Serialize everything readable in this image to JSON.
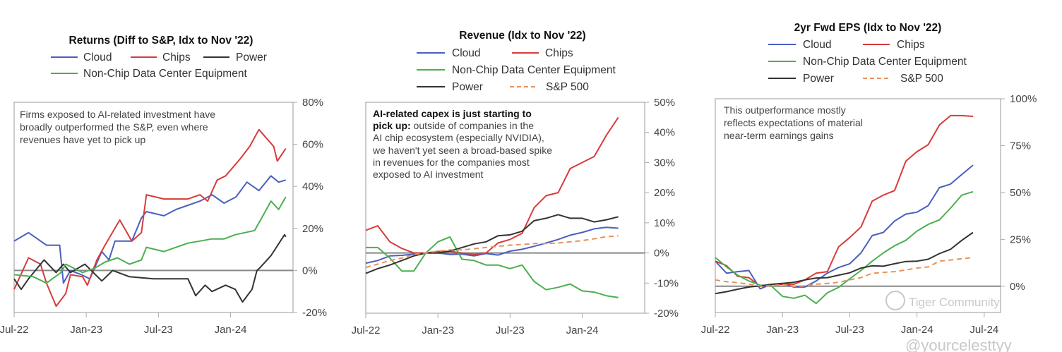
{
  "colors": {
    "cloud": "#4a5fc1",
    "chips": "#d83b3b",
    "power": "#333333",
    "nonchip": "#4caf50",
    "sp500": "#e8915a"
  },
  "watermark": {
    "community": "Tiger Community",
    "handle": "@yourcelesttyy"
  },
  "chart_data": [
    {
      "type": "line",
      "title": "Returns (Diff to S&P, Idx to Nov '22)",
      "annotation": [
        "Firms exposed to AI-related investment have",
        "broadly outperformed the S&P, even where",
        "revenues have yet to pick up"
      ],
      "legend": [
        "Cloud",
        "Chips",
        "Power",
        "Non-Chip Data Center Equipment"
      ],
      "xlim": [
        "2022-07-01",
        "2024-06-07"
      ],
      "ylim": [
        -20,
        80
      ],
      "x_ticks": [
        {
          "date": "2022-07-01",
          "label": "Jul-22"
        },
        {
          "date": "2023-01-01",
          "label": "Jan-23"
        },
        {
          "date": "2023-07-01",
          "label": "Jul-23"
        },
        {
          "date": "2024-01-01",
          "label": "Jan-24"
        }
      ],
      "y_ticks": [
        {
          "value": 80,
          "label": "80%"
        },
        {
          "value": 60,
          "label": "60%"
        },
        {
          "value": 40,
          "label": "40%"
        },
        {
          "value": 20,
          "label": "20%"
        },
        {
          "value": 0,
          "label": "0%"
        },
        {
          "value": -20,
          "label": "-20%"
        }
      ],
      "y_axis_side": "right",
      "grid": false,
      "legend_placement": "top",
      "series": [
        {
          "name": "Cloud",
          "color": "#4a5fc1",
          "dashed": false,
          "points": [
            [
              "2022-07-01",
              14
            ],
            [
              "2022-08-07",
              18
            ],
            [
              "2022-09-22",
              12
            ],
            [
              "2022-10-25",
              12
            ],
            [
              "2022-11-04",
              -6
            ],
            [
              "2022-11-22",
              0
            ],
            [
              "2022-12-19",
              -2
            ],
            [
              "2023-01-10",
              -4
            ],
            [
              "2023-02-10",
              9
            ],
            [
              "2023-02-28",
              5
            ],
            [
              "2023-03-13",
              14
            ],
            [
              "2023-04-25",
              14
            ],
            [
              "2023-05-19",
              25
            ],
            [
              "2023-06-01",
              28
            ],
            [
              "2023-07-15",
              26
            ],
            [
              "2023-08-15",
              29
            ],
            [
              "2023-09-15",
              31
            ],
            [
              "2023-10-15",
              33
            ],
            [
              "2023-11-15",
              36
            ],
            [
              "2023-12-15",
              32
            ],
            [
              "2024-01-15",
              35
            ],
            [
              "2024-02-12",
              42
            ],
            [
              "2024-03-12",
              38
            ],
            [
              "2024-04-12",
              45
            ],
            [
              "2024-05-01",
              42
            ],
            [
              "2024-05-19",
              43
            ]
          ]
        },
        {
          "name": "Chips",
          "color": "#d83b3b",
          "dashed": false,
          "points": [
            [
              "2022-07-01",
              -9
            ],
            [
              "2022-08-07",
              6
            ],
            [
              "2022-09-07",
              3
            ],
            [
              "2022-09-22",
              -6
            ],
            [
              "2022-10-16",
              -17
            ],
            [
              "2022-11-10",
              -11
            ],
            [
              "2022-11-22",
              -2
            ],
            [
              "2022-12-22",
              -3
            ],
            [
              "2023-01-04",
              -7
            ],
            [
              "2023-01-28",
              5
            ],
            [
              "2023-02-18",
              12
            ],
            [
              "2023-03-25",
              24
            ],
            [
              "2023-04-25",
              14
            ],
            [
              "2023-05-19",
              18
            ],
            [
              "2023-06-01",
              36
            ],
            [
              "2023-07-15",
              34
            ],
            [
              "2023-09-15",
              34
            ],
            [
              "2023-10-15",
              36
            ],
            [
              "2023-11-04",
              33
            ],
            [
              "2023-11-28",
              43
            ],
            [
              "2023-12-19",
              45
            ],
            [
              "2024-01-25",
              53
            ],
            [
              "2024-02-19",
              59
            ],
            [
              "2024-03-12",
              67
            ],
            [
              "2024-04-19",
              59
            ],
            [
              "2024-04-28",
              52
            ],
            [
              "2024-05-19",
              58
            ]
          ]
        },
        {
          "name": "Power",
          "color": "#333333",
          "dashed": false,
          "points": [
            [
              "2022-07-01",
              -4
            ],
            [
              "2022-07-19",
              -9
            ],
            [
              "2022-08-07",
              -4
            ],
            [
              "2022-09-16",
              5
            ],
            [
              "2022-10-16",
              -1
            ],
            [
              "2022-11-04",
              3
            ],
            [
              "2022-11-22",
              -1
            ],
            [
              "2022-12-28",
              3
            ],
            [
              "2023-02-10",
              -5
            ],
            [
              "2023-03-07",
              0
            ],
            [
              "2023-04-19",
              -3
            ],
            [
              "2023-06-19",
              -4
            ],
            [
              "2023-09-15",
              -4
            ],
            [
              "2023-10-04",
              -12
            ],
            [
              "2023-10-28",
              -7
            ],
            [
              "2023-11-15",
              -10
            ],
            [
              "2023-12-19",
              -7
            ],
            [
              "2024-01-13",
              -9
            ],
            [
              "2024-02-01",
              -15
            ],
            [
              "2024-02-25",
              -9
            ],
            [
              "2024-03-07",
              0
            ],
            [
              "2024-03-13",
              1
            ],
            [
              "2024-04-12",
              7
            ],
            [
              "2024-05-16",
              17
            ],
            [
              "2024-05-19",
              16
            ]
          ]
        },
        {
          "name": "Non-Chip Data Center Equipment",
          "color": "#4caf50",
          "dashed": false,
          "points": [
            [
              "2022-07-01",
              -2
            ],
            [
              "2022-08-19",
              -3
            ],
            [
              "2022-09-22",
              -6
            ],
            [
              "2022-10-28",
              -1
            ],
            [
              "2022-11-10",
              3
            ],
            [
              "2022-12-22",
              -1
            ],
            [
              "2023-01-22",
              1
            ],
            [
              "2023-02-18",
              4
            ],
            [
              "2023-03-19",
              6
            ],
            [
              "2023-04-19",
              3
            ],
            [
              "2023-05-19",
              5
            ],
            [
              "2023-06-01",
              11
            ],
            [
              "2023-07-15",
              9
            ],
            [
              "2023-09-15",
              13
            ],
            [
              "2023-11-15",
              15
            ],
            [
              "2023-12-15",
              15
            ],
            [
              "2024-01-13",
              17
            ],
            [
              "2024-03-01",
              19
            ],
            [
              "2024-03-25",
              27
            ],
            [
              "2024-04-12",
              33
            ],
            [
              "2024-05-01",
              29
            ],
            [
              "2024-05-19",
              35
            ]
          ]
        }
      ]
    },
    {
      "type": "line",
      "title": "Revenue (Idx to Nov '22)",
      "annotation_bold": "AI-related capex is just starting to",
      "annotation_bold2": "pick up:",
      "annotation_rest2": " outside of companies in the",
      "annotation": [
        "AI chip ecosystem (especially NVIDIA),",
        "we haven't yet seen a broad-based spike",
        "in revenues for the companies most",
        "exposed to AI investment"
      ],
      "legend": [
        "Cloud",
        "Chips",
        "Non-Chip Data Center Equipment",
        "Power",
        "S&P 500"
      ],
      "xlim": [
        "2022-07-01",
        "2024-06-07"
      ],
      "ylim": [
        -20,
        50
      ],
      "x_ticks": [
        {
          "date": "2022-07-01",
          "label": "Jul-22"
        },
        {
          "date": "2023-01-01",
          "label": "Jan-23"
        },
        {
          "date": "2023-07-01",
          "label": "Jul-23"
        },
        {
          "date": "2024-01-01",
          "label": "Jan-24"
        }
      ],
      "y_ticks": [
        {
          "value": 50,
          "label": "50%"
        },
        {
          "value": 40,
          "label": "40%"
        },
        {
          "value": 30,
          "label": "30%"
        },
        {
          "value": 20,
          "label": "20%"
        },
        {
          "value": 10,
          "label": "10%"
        },
        {
          "value": 0,
          "label": "0%"
        },
        {
          "value": -10,
          "label": "-10%"
        },
        {
          "value": -20,
          "label": "-20%"
        }
      ],
      "y_axis_side": "right",
      "grid": false,
      "legend_placement": "top",
      "dates": [
        "2022-07-01",
        "2022-08-01",
        "2022-09-01",
        "2022-10-01",
        "2022-11-01",
        "2022-12-01",
        "2023-01-01",
        "2023-02-01",
        "2023-03-01",
        "2023-04-01",
        "2023-05-01",
        "2023-06-01",
        "2023-07-01",
        "2023-08-01",
        "2023-09-01",
        "2023-10-01",
        "2023-11-01",
        "2023-12-01",
        "2024-01-01",
        "2024-02-01",
        "2024-03-01",
        "2024-04-01"
      ],
      "series": [
        {
          "name": "Cloud",
          "color": "#4a5fc1",
          "dashed": false,
          "values": [
            -3.4,
            -2.5,
            -1,
            -0.8,
            -0.4,
            0,
            0,
            -0.5,
            -0.4,
            -1,
            -0.2,
            -0.7,
            0.6,
            1.2,
            2.2,
            3.3,
            4.5,
            5.9,
            6.8,
            8,
            8.5,
            8.2
          ]
        },
        {
          "name": "Chips",
          "color": "#d83b3b",
          "dashed": false,
          "values": [
            7.5,
            9,
            3.7,
            1.5,
            0,
            0,
            0.5,
            0.5,
            0,
            -0.5,
            0,
            3.3,
            4.5,
            6.5,
            15,
            19,
            20,
            28,
            30,
            32,
            39,
            45
          ]
        },
        {
          "name": "Non-Chip Data Center Equipment",
          "color": "#4caf50",
          "dashed": false,
          "values": [
            1.8,
            1.8,
            -1.7,
            -6,
            -6,
            0,
            3.7,
            5.3,
            -2.1,
            -2.5,
            -4,
            -4,
            -5.2,
            -4,
            -9.5,
            -12.2,
            -11.4,
            -10.3,
            -12.6,
            -13,
            -14.2,
            -14.8
          ]
        },
        {
          "name": "Power",
          "color": "#333333",
          "dashed": false,
          "values": [
            -6.8,
            -5.2,
            -4,
            -2.5,
            -1,
            0,
            0,
            0.6,
            1.8,
            3,
            3.7,
            5.7,
            6,
            7.2,
            10.7,
            11.5,
            12.7,
            11.5,
            11.5,
            10.3,
            11,
            12
          ]
        },
        {
          "name": "S&P 500",
          "color": "#e8915a",
          "dashed": true,
          "values": [
            -4.8,
            -3.7,
            -2.5,
            -1.7,
            -0.5,
            0,
            0.6,
            1,
            1,
            1.4,
            1.8,
            2.2,
            2.6,
            2.8,
            3.1,
            3.1,
            3.3,
            3.7,
            4.1,
            4.7,
            5.4,
            5.7
          ]
        }
      ]
    },
    {
      "type": "line",
      "title": "2yr Fwd EPS (Idx to Nov '22)",
      "annotation": [
        "This outperformance mostly",
        "reflects expectations of material",
        "near-term earnings gains"
      ],
      "legend": [
        "Cloud",
        "Chips",
        "Non-Chip Data Center Equipment",
        "Power",
        "S&P 500"
      ],
      "xlim": [
        "2022-07-01",
        "2024-08-15"
      ],
      "ylim": [
        -14,
        100
      ],
      "x_ticks": [
        {
          "date": "2022-07-01",
          "label": "Jul-22"
        },
        {
          "date": "2023-01-01",
          "label": "Jan-23"
        },
        {
          "date": "2023-07-01",
          "label": "Jul-23"
        },
        {
          "date": "2024-01-01",
          "label": "Jan-24"
        },
        {
          "date": "2024-07-01",
          "label": "Jul-24"
        }
      ],
      "y_ticks": [
        {
          "value": 100,
          "label": "100%"
        },
        {
          "value": 75,
          "label": "75%"
        },
        {
          "value": 50,
          "label": "50%"
        },
        {
          "value": 25,
          "label": "25%"
        },
        {
          "value": 0,
          "label": "0%"
        }
      ],
      "y_axis_side": "right",
      "grid": false,
      "legend_placement": "top",
      "dates": [
        "2022-07-01",
        "2022-08-01",
        "2022-09-01",
        "2022-10-01",
        "2022-11-01",
        "2022-12-01",
        "2023-01-01",
        "2023-02-01",
        "2023-03-01",
        "2023-04-01",
        "2023-05-01",
        "2023-06-01",
        "2023-07-01",
        "2023-08-01",
        "2023-09-01",
        "2023-10-01",
        "2023-11-01",
        "2023-12-01",
        "2024-01-01",
        "2024-02-01",
        "2024-03-01",
        "2024-04-01",
        "2024-05-01",
        "2024-06-01"
      ],
      "series": [
        {
          "name": "Cloud",
          "color": "#4a5fc1",
          "dashed": false,
          "values": [
            13.4,
            7,
            7.8,
            8.4,
            -1.4,
            1,
            1.5,
            -0.4,
            -0.4,
            2.8,
            7,
            10,
            12,
            17.8,
            27,
            28.7,
            34.8,
            38.5,
            39.5,
            43,
            52.6,
            54.5,
            59.6,
            64.6
          ]
        },
        {
          "name": "Chips",
          "color": "#d83b3b",
          "dashed": false,
          "values": [
            13.4,
            11,
            5.3,
            4.6,
            0,
            1,
            1,
            1,
            3.4,
            7,
            7.8,
            21,
            26,
            31.6,
            45.4,
            48.6,
            51,
            66.7,
            71.8,
            75.5,
            86,
            91,
            91,
            90.6
          ]
        },
        {
          "name": "Non-Chip Data Center Equipment",
          "color": "#4caf50",
          "dashed": false,
          "values": [
            15.3,
            10.3,
            5.9,
            2.8,
            0.6,
            0.2,
            -5.4,
            -6.4,
            -4.8,
            -9.2,
            -3.5,
            -0.6,
            4,
            8.4,
            13.4,
            17.8,
            21.6,
            24.5,
            29.4,
            33,
            35.4,
            41.7,
            48.6,
            50.4
          ]
        },
        {
          "name": "Power",
          "color": "#333333",
          "dashed": false,
          "values": [
            -3.9,
            -2.9,
            -1.6,
            -0.4,
            0.2,
            1,
            1.5,
            2.1,
            3.4,
            4.4,
            4.6,
            5.9,
            7.2,
            9.7,
            10.9,
            10.7,
            12,
            13.2,
            13.4,
            14.4,
            17.4,
            19.7,
            24.5,
            28.7
          ]
        },
        {
          "name": "S&P 500",
          "color": "#e8915a",
          "dashed": true,
          "values": [
            3.4,
            2.4,
            1.9,
            1.1,
            0.2,
            0.2,
            1,
            -0.1,
            0.2,
            1.1,
            1.5,
            2.1,
            3.4,
            4.6,
            6.9,
            7.4,
            7.8,
            8.7,
            9.7,
            10.3,
            13.4,
            14,
            14.7,
            15.3
          ]
        }
      ]
    }
  ]
}
